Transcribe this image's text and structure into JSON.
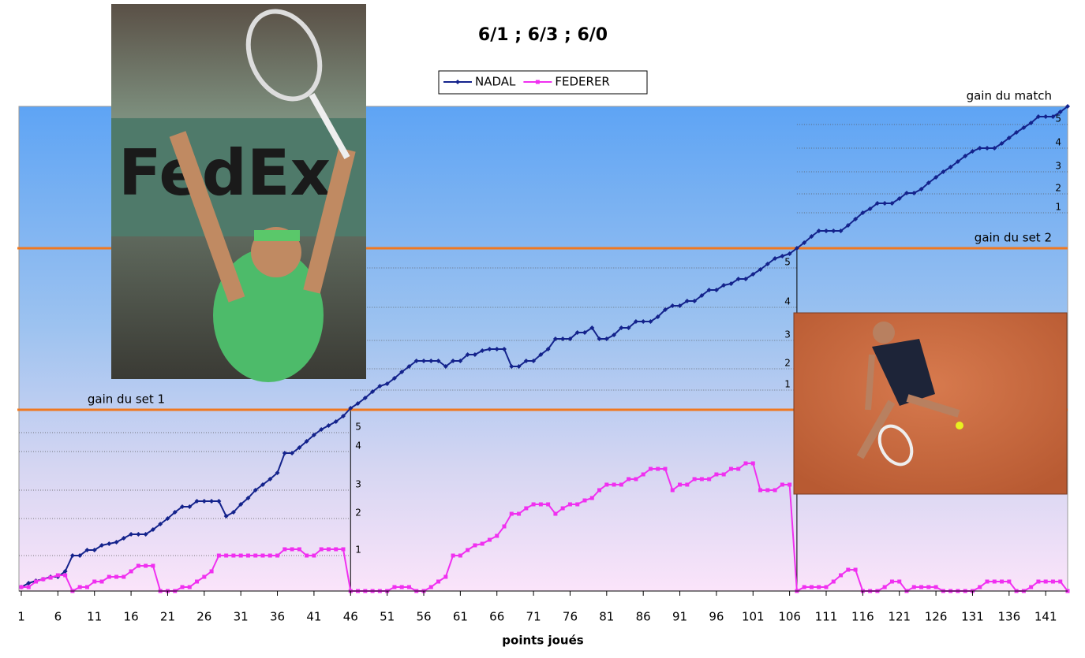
{
  "chart_data": {
    "type": "line",
    "title": "6/1 ; 6/3 ; 6/0",
    "x_label": "points joués",
    "x": [
      1,
      2,
      3,
      4,
      5,
      6,
      7,
      8,
      9,
      10,
      11,
      12,
      13,
      14,
      15,
      16,
      17,
      18,
      19,
      20,
      21,
      22,
      23,
      24,
      25,
      26,
      27,
      28,
      29,
      30,
      31,
      32,
      33,
      34,
      35,
      36,
      37,
      38,
      39,
      40,
      41,
      42,
      43,
      44,
      45,
      46,
      47,
      48,
      49,
      50,
      51,
      52,
      53,
      54,
      55,
      56,
      57,
      58,
      59,
      60,
      61,
      62,
      63,
      64,
      65,
      66,
      67,
      68,
      69,
      70,
      71,
      72,
      73,
      74,
      75,
      76,
      77,
      78,
      79,
      80,
      81,
      82,
      83,
      84,
      85,
      86,
      87,
      88,
      89,
      90,
      91,
      92,
      93,
      94,
      95,
      96,
      97,
      98,
      99,
      100,
      101,
      102,
      103,
      104,
      105,
      106,
      107,
      108,
      109,
      110,
      111,
      112,
      113,
      114,
      115,
      116,
      117,
      118,
      119,
      120,
      121,
      122,
      123,
      124,
      125,
      126,
      127,
      128,
      129,
      130,
      131,
      132,
      133,
      134,
      135,
      136,
      137,
      138,
      139,
      140,
      141,
      142,
      143,
      144
    ],
    "xlim": [
      1,
      144
    ],
    "xticks": [
      1,
      6,
      11,
      16,
      21,
      26,
      31,
      36,
      41,
      46,
      51,
      56,
      61,
      66,
      71,
      76,
      81,
      86,
      91,
      96,
      101,
      106,
      111,
      116,
      121,
      126,
      131,
      136,
      141
    ],
    "ylim": [
      0,
      615
    ],
    "legend": "top",
    "series": [
      {
        "name": "NADAL",
        "color": "#14238c",
        "marker": "diamond",
        "values": [
          5,
          10,
          13,
          15,
          18,
          18,
          25,
          45,
          45,
          52,
          52,
          58,
          60,
          62,
          67,
          72,
          72,
          72,
          78,
          85,
          92,
          100,
          107,
          107,
          114,
          114,
          114,
          114,
          95,
          100,
          110,
          118,
          128,
          135,
          142,
          150,
          175,
          175,
          182,
          190,
          198,
          205,
          210,
          215,
          222,
          232,
          238,
          245,
          253,
          260,
          263,
          270,
          278,
          285,
          292,
          292,
          292,
          292,
          285,
          292,
          292,
          300,
          300,
          305,
          307,
          307,
          307,
          285,
          285,
          292,
          292,
          300,
          307,
          320,
          320,
          320,
          328,
          328,
          334,
          320,
          320,
          325,
          334,
          334,
          342,
          342,
          342,
          348,
          357,
          362,
          362,
          368,
          368,
          375,
          382,
          382,
          388,
          390,
          396,
          396,
          402,
          408,
          415,
          422,
          425,
          428,
          435,
          442,
          450,
          457,
          457,
          457,
          457,
          464,
          472,
          480,
          485,
          492,
          492,
          492,
          498,
          505,
          505,
          510,
          518,
          525,
          532,
          538,
          545,
          552,
          558,
          562,
          562,
          562,
          568,
          575,
          582,
          588,
          594,
          602,
          602,
          602,
          608,
          615
        ]
      },
      {
        "name": "FEDERER",
        "color": "#f030f0",
        "marker": "square",
        "values": [
          5,
          5,
          12,
          15,
          17,
          20,
          20,
          0,
          5,
          5,
          12,
          12,
          18,
          18,
          18,
          25,
          32,
          32,
          32,
          0,
          0,
          0,
          5,
          5,
          12,
          18,
          25,
          45,
          45,
          45,
          45,
          45,
          45,
          45,
          45,
          45,
          53,
          53,
          53,
          45,
          45,
          53,
          53,
          53,
          53,
          0,
          0,
          0,
          0,
          0,
          0,
          5,
          5,
          5,
          0,
          0,
          5,
          12,
          18,
          45,
          45,
          52,
          58,
          60,
          65,
          70,
          82,
          98,
          98,
          105,
          110,
          110,
          110,
          98,
          105,
          110,
          110,
          115,
          118,
          128,
          135,
          135,
          135,
          142,
          142,
          148,
          155,
          155,
          155,
          128,
          135,
          135,
          142,
          142,
          142,
          148,
          148,
          155,
          155,
          162,
          162,
          128,
          128,
          128,
          135,
          135,
          0,
          5,
          5,
          5,
          5,
          12,
          20,
          27,
          27,
          0,
          0,
          0,
          5,
          12,
          12,
          0,
          5,
          5,
          5,
          5,
          0,
          0,
          0,
          0,
          0,
          5,
          12,
          12,
          12,
          12,
          0,
          0,
          5,
          12,
          12,
          12,
          12,
          0
        ]
      }
    ],
    "reference_lines": [
      {
        "label": "gain du set 1",
        "value": 230,
        "color": "#f07820"
      },
      {
        "label": "gain du set 2",
        "value": 435,
        "color": "#f07820"
      },
      {
        "label": "gain du match",
        "value": 615
      }
    ],
    "sets": [
      {
        "start": 1,
        "end": 46,
        "games": [
          {
            "value": 45,
            "label": "1"
          },
          {
            "value": 92,
            "label": "2"
          },
          {
            "value": 128,
            "label": "3"
          },
          {
            "value": 177,
            "label": "4"
          },
          {
            "value": 201,
            "label": "5"
          }
        ]
      },
      {
        "start": 46,
        "end": 107,
        "games": [
          {
            "value": 255,
            "label": "1"
          },
          {
            "value": 282,
            "label": "2"
          },
          {
            "value": 318,
            "label": "3"
          },
          {
            "value": 360,
            "label": "4"
          },
          {
            "value": 410,
            "label": "5"
          }
        ]
      },
      {
        "start": 107,
        "end": 144,
        "games": [
          {
            "value": 480,
            "label": "1"
          },
          {
            "value": 504,
            "label": "2"
          },
          {
            "value": 532,
            "label": "3"
          },
          {
            "value": 562,
            "label": "4"
          },
          {
            "value": 592,
            "label": "5"
          }
        ]
      }
    ]
  }
}
